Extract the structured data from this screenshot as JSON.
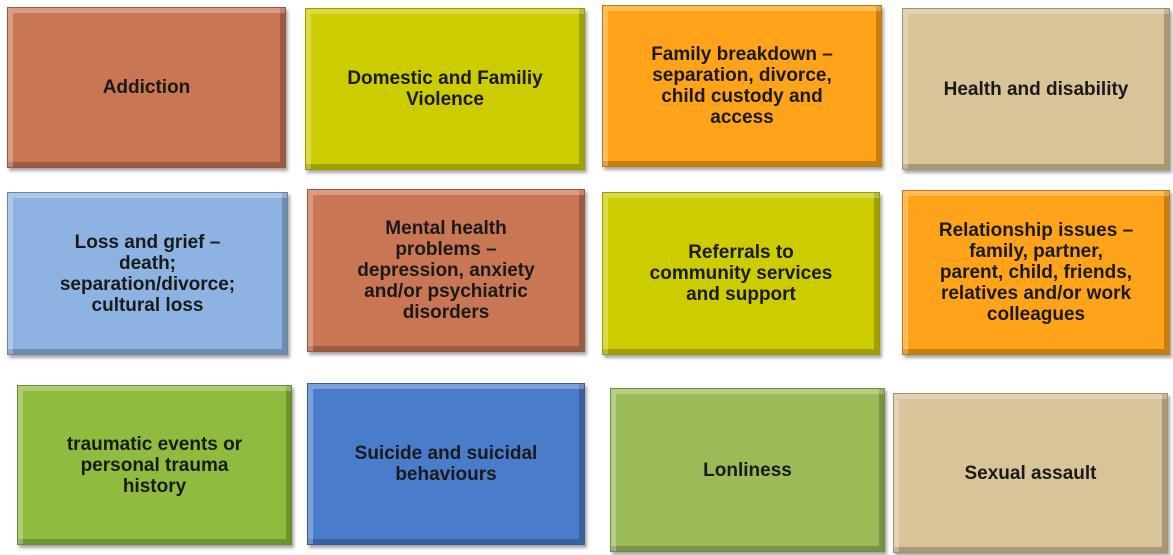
{
  "tiles": [
    {
      "lines": [
        "Addiction"
      ]
    },
    {
      "lines": [
        "Domestic and Familiy",
        "Violence"
      ]
    },
    {
      "lines": [
        "Family breakdown –",
        "separation, divorce,",
        "child custody and",
        "access"
      ]
    },
    {
      "lines": [
        "Health and disability"
      ]
    },
    {
      "lines": [
        "Loss and grief –",
        "death;",
        "separation/divorce;",
        "cultural loss"
      ]
    },
    {
      "lines": [
        "Mental health",
        "problems –",
        "depression, anxiety",
        "and/or psychiatric",
        "disorders"
      ]
    },
    {
      "lines": [
        "Referrals to",
        "community services",
        "and support"
      ]
    },
    {
      "lines": [
        "Relationship issues –",
        "family, partner,",
        "parent, child, friends,",
        "relatives and/or work",
        "colleagues"
      ]
    },
    {
      "lines": [
        "traumatic events or",
        "personal trauma",
        "history"
      ]
    },
    {
      "lines": [
        "Suicide and suicidal",
        "behaviours"
      ]
    },
    {
      "lines": [
        "Lonliness"
      ]
    },
    {
      "lines": [
        "Sexual assault"
      ]
    }
  ]
}
